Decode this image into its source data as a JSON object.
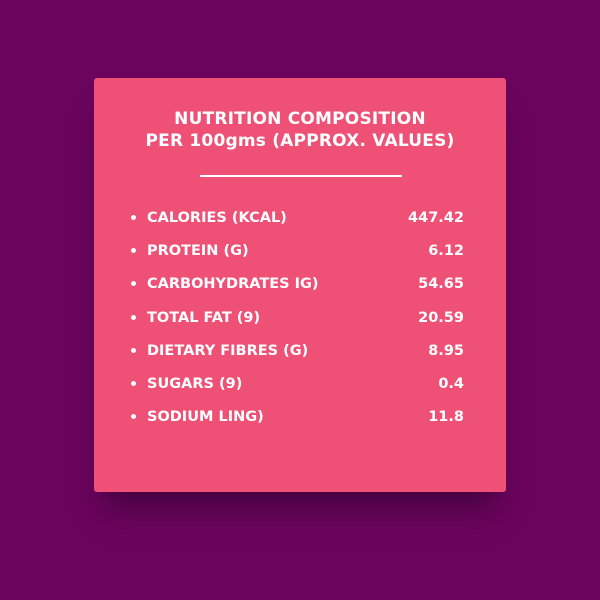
{
  "colors": {
    "background": "#6b045d",
    "card": "#ef5075",
    "text": "#ffffff"
  },
  "title": {
    "line1": "NUTRITION COMPOSITION",
    "line2": "PER 100gms (APPROX. VALUES)"
  },
  "bullet_icon": "bullet-dot",
  "items": [
    {
      "label": "CALORIES (KCAL)",
      "value": "447.42"
    },
    {
      "label": "PROTEIN (G)",
      "value": "6.12"
    },
    {
      "label": "CARBOHYDRATES IG)",
      "value": "54.65"
    },
    {
      "label": "TOTAL FAT (9)",
      "value": "20.59"
    },
    {
      "label": "DIETARY FIBRES (G)",
      "value": "8.95"
    },
    {
      "label": "SUGARS (9)",
      "value": "0.4"
    },
    {
      "label": "SODIUM LING)",
      "value": "11.8"
    }
  ]
}
